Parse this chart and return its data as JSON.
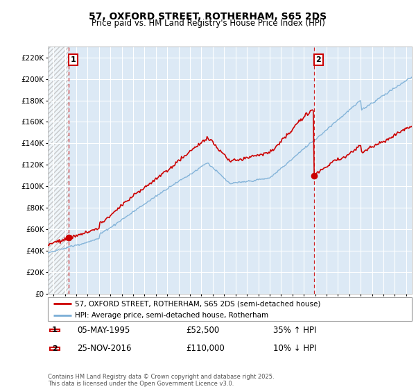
{
  "title": "57, OXFORD STREET, ROTHERHAM, S65 2DS",
  "subtitle": "Price paid vs. HM Land Registry's House Price Index (HPI)",
  "ylim": [
    0,
    230000
  ],
  "yticks": [
    0,
    20000,
    40000,
    60000,
    80000,
    100000,
    120000,
    140000,
    160000,
    180000,
    200000,
    220000
  ],
  "sale1_date": "05-MAY-1995",
  "sale1_price": 52500,
  "sale1_year": 1995.33,
  "sale1_hpi_rel": "35% ↑ HPI",
  "sale2_date": "25-NOV-2016",
  "sale2_price": 110000,
  "sale2_year": 2016.9,
  "sale2_hpi_rel": "10% ↓ HPI",
  "legend_line1": "57, OXFORD STREET, ROTHERHAM, S65 2DS (semi-detached house)",
  "legend_line2": "HPI: Average price, semi-detached house, Rotherham",
  "footer": "Contains HM Land Registry data © Crown copyright and database right 2025.\nThis data is licensed under the Open Government Licence v3.0.",
  "sale_color": "#cc0000",
  "hpi_color": "#7aaed6",
  "bg_color": "#dce9f5",
  "grid_color": "#ffffff",
  "dashed_color": "#cc0000",
  "xlim_start": 1993.5,
  "xlim_end": 2025.5
}
